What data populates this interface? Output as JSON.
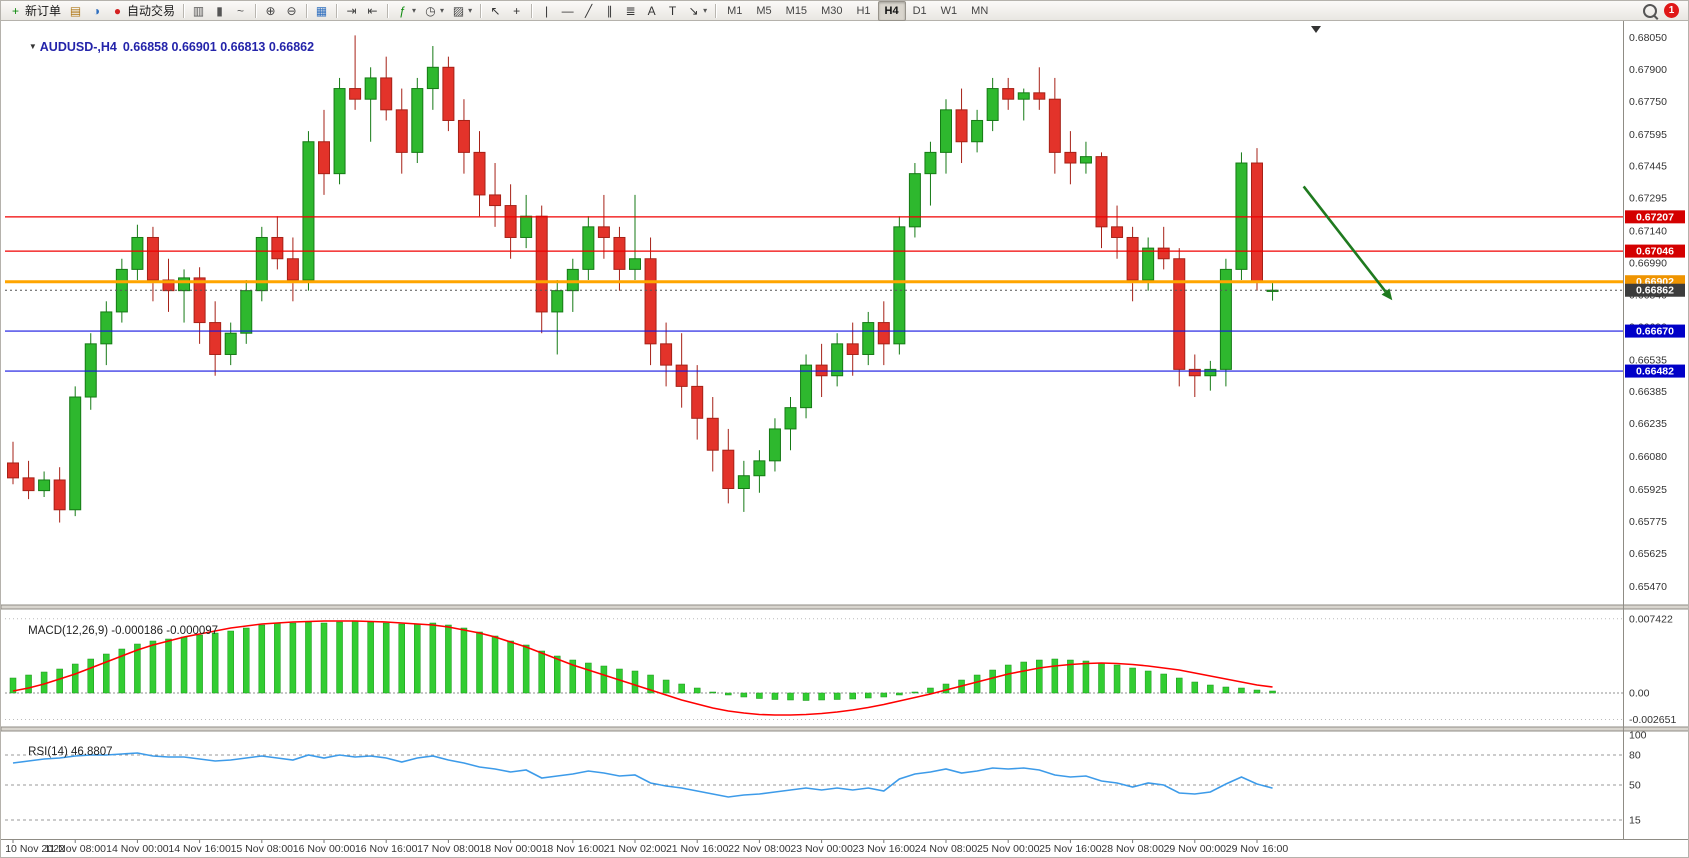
{
  "toolbar": {
    "notification_count": "1",
    "dropdown_glyph": "▾",
    "items": [
      {
        "name": "new-order-button",
        "icon": "new-order-icon",
        "glyph": "+",
        "color": "#0c8a0c",
        "label": "新订单"
      },
      {
        "name": "chart-window-button",
        "icon": "chart-window-icon",
        "glyph": "▤",
        "color": "#b07818"
      },
      {
        "name": "refresh-button",
        "icon": "refresh-icon",
        "glyph": "◑",
        "color": "#2f6fbf"
      },
      {
        "name": "autotrading-button",
        "icon": "autotrading-icon",
        "glyph": "●",
        "color": "#d42020",
        "label": "自动交易"
      },
      {
        "sep": true
      },
      {
        "name": "bar-chart-button",
        "icon": "bar-chart-icon",
        "glyph": "▥",
        "color": "#555555"
      },
      {
        "name": "candlestick-chart-button",
        "icon": "candlestick-chart-icon",
        "glyph": "▮",
        "color": "#555555"
      },
      {
        "name": "line-chart-button",
        "ic on": "line-chart-icon",
        "icon": "line-chart-icon",
        "glyph": "~",
        "color": "#555555"
      },
      {
        "sep": true
      },
      {
        "name": "zoom-in-button",
        "icon": "zoom-in-icon",
        "glyph": "⊕",
        "color": "#444444"
      },
      {
        "name": "zoom-out-button",
        "icon": "zoom-out-icon",
        "glyph": "⊖",
        "color": "#444444"
      },
      {
        "sep": true
      },
      {
        "name": "tile-windows-button",
        "icon": "tile-windows-icon",
        "glyph": "▦",
        "color": "#2f6fbf"
      },
      {
        "sep": true
      },
      {
        "name": "auto-scroll-button",
        "icon": "auto-scroll-icon",
        "glyph": "⇥",
        "color": "#444444"
      },
      {
        "name": "chart-shift-button",
        "icon": "chart-shift-icon",
        "glyph": "⇤",
        "color": "#444444"
      },
      {
        "sep": true
      },
      {
        "name": "indicators-button",
        "icon": "indicators-icon",
        "glyph": "ƒ",
        "color": "#0c8a0c",
        "dropdown": true
      },
      {
        "name": "timeframes-menu-button",
        "icon": "clock-icon",
        "glyph": "◷",
        "color": "#444444",
        "dropdown": true
      },
      {
        "name": "templates-button",
        "icon": "template-icon",
        "glyph": "▨",
        "color": "#444444",
        "dropdown": true
      },
      {
        "sep": true
      },
      {
        "name": "cursor-button",
        "icon": "cursor-icon",
        "glyph": "↖",
        "color": "#333333"
      },
      {
        "name": "crosshair-button",
        "icon": "crosshair-icon",
        "glyph": "+",
        "color": "#333333"
      },
      {
        "sep": true
      },
      {
        "name": "vertical-line-button",
        "icon": "vertical-line-icon",
        "glyph": "|",
        "color": "#333333"
      },
      {
        "name": "horizontal-line-button",
        "icon": "horizontal-line-icon",
        "glyph": "—",
        "color": "#333333"
      },
      {
        "name": "trendline-button",
        "icon": "trendline-icon",
        "glyph": "╱",
        "color": "#333333"
      },
      {
        "name": "channel-button",
        "icon": "channel-icon",
        "glyph": "∥",
        "color": "#333333"
      },
      {
        "name": "fibonacci-button",
        "icon": "fibonacci-icon",
        "glyph": "≣",
        "color": "#333333"
      },
      {
        "name": "text-button",
        "icon": "text-icon",
        "glyph": "A",
        "color": "#333333"
      },
      {
        "name": "label-button",
        "icon": "text-label-icon",
        "glyph": "T",
        "color": "#333333"
      },
      {
        "name": "arrow-tools-button",
        "icon": "arrow-tools-icon",
        "glyph": "↘",
        "color": "#333333",
        "dropdown": true
      },
      {
        "sep": true
      },
      {
        "name": "timeframe-m1-button",
        "text": "M1"
      },
      {
        "name": "timeframe-m5-button",
        "text": "M5"
      },
      {
        "name": "timeframe-m15-button",
        "text": "M15"
      },
      {
        "name": "timeframe-m30-button",
        "text": "M30"
      },
      {
        "name": "timeframe-h1-button",
        "text": "H1"
      },
      {
        "name": "timeframe-h4-button",
        "text": "H4",
        "active": true
      },
      {
        "name": "timeframe-d1-button",
        "text": "D1"
      },
      {
        "name": "timeframe-w1-button",
        "text": "W1"
      },
      {
        "name": "timeframe-mn-button",
        "text": "MN"
      }
    ]
  },
  "chart": {
    "menu_marker": "▼",
    "symbol": "AUDUSD-,H4",
    "open": "0.66858",
    "high": "0.66901",
    "low": "0.66813",
    "close": "0.66862",
    "macd_label": "MACD(12,26,9)",
    "macd_values": "-0.000186 -0.000097",
    "rsi_label": "RSI(14)",
    "rsi_value": "46.8807"
  },
  "chart_data": {
    "type": "candlestick",
    "title": "AUDUSD-,H4",
    "timeframe": "H4",
    "ohlc_current": {
      "open": 0.66858,
      "high": 0.66901,
      "low": 0.66813,
      "close": 0.66862
    },
    "x_labels": [
      "10 Nov 2022",
      "11 Nov 08:00",
      "14 Nov 00:00",
      "14 Nov 16:00",
      "15 Nov 08:00",
      "16 Nov 00:00",
      "16 Nov 16:00",
      "17 Nov 08:00",
      "18 Nov 00:00",
      "18 Nov 16:00",
      "21 Nov 02:00",
      "21 Nov 16:00",
      "22 Nov 08:00",
      "23 Nov 00:00",
      "23 Nov 16:00",
      "24 Nov 08:00",
      "25 Nov 00:00",
      "25 Nov 16:00",
      "28 Nov 08:00",
      "29 Nov 00:00",
      "29 Nov 16:00"
    ],
    "price_axis_labels": [
      "0.68050",
      "0.67900",
      "0.67750",
      "0.67595",
      "0.67445",
      "0.67295",
      "0.67140",
      "0.66990",
      "0.66840",
      "0.66690",
      "0.66535",
      "0.66385",
      "0.66235",
      "0.66080",
      "0.65925",
      "0.65775",
      "0.65625",
      "0.65470"
    ],
    "candles": [
      [
        0.6605,
        0.6615,
        0.6595,
        0.6598
      ],
      [
        0.6598,
        0.6606,
        0.6588,
        0.6592
      ],
      [
        0.6592,
        0.6601,
        0.6589,
        0.6597
      ],
      [
        0.6597,
        0.6603,
        0.6577,
        0.6583
      ],
      [
        0.6583,
        0.6641,
        0.658,
        0.6636
      ],
      [
        0.6636,
        0.6666,
        0.663,
        0.6661
      ],
      [
        0.6661,
        0.6681,
        0.6651,
        0.6676
      ],
      [
        0.6676,
        0.6701,
        0.6671,
        0.6696
      ],
      [
        0.6696,
        0.6717,
        0.6691,
        0.6711
      ],
      [
        0.6711,
        0.6716,
        0.6681,
        0.6691
      ],
      [
        0.6691,
        0.6701,
        0.6676,
        0.6686
      ],
      [
        0.6686,
        0.6696,
        0.6671,
        0.6692
      ],
      [
        0.6692,
        0.6697,
        0.6661,
        0.6671
      ],
      [
        0.6671,
        0.6681,
        0.6646,
        0.6656
      ],
      [
        0.6656,
        0.6671,
        0.6651,
        0.6666
      ],
      [
        0.6666,
        0.6691,
        0.6661,
        0.6686
      ],
      [
        0.6686,
        0.6716,
        0.6681,
        0.6711
      ],
      [
        0.6711,
        0.6721,
        0.6696,
        0.6701
      ],
      [
        0.6701,
        0.6711,
        0.6681,
        0.6691
      ],
      [
        0.6691,
        0.6761,
        0.6686,
        0.6756
      ],
      [
        0.6756,
        0.6771,
        0.6731,
        0.6741
      ],
      [
        0.6741,
        0.6786,
        0.6736,
        0.6781
      ],
      [
        0.6781,
        0.6806,
        0.6771,
        0.6776
      ],
      [
        0.6776,
        0.6791,
        0.6756,
        0.6786
      ],
      [
        0.6786,
        0.6796,
        0.6766,
        0.6771
      ],
      [
        0.6771,
        0.6781,
        0.6741,
        0.6751
      ],
      [
        0.6751,
        0.6786,
        0.6746,
        0.6781
      ],
      [
        0.6781,
        0.6801,
        0.6771,
        0.6791
      ],
      [
        0.6791,
        0.6796,
        0.6761,
        0.6766
      ],
      [
        0.6766,
        0.6776,
        0.6741,
        0.6751
      ],
      [
        0.6751,
        0.6761,
        0.6721,
        0.6731
      ],
      [
        0.6731,
        0.6746,
        0.6716,
        0.6726
      ],
      [
        0.6726,
        0.6736,
        0.6701,
        0.6711
      ],
      [
        0.6711,
        0.6731,
        0.6706,
        0.6721
      ],
      [
        0.6721,
        0.6726,
        0.6666,
        0.6676
      ],
      [
        0.6676,
        0.6691,
        0.6656,
        0.6686
      ],
      [
        0.6686,
        0.6701,
        0.6676,
        0.6696
      ],
      [
        0.6696,
        0.6721,
        0.6691,
        0.6716
      ],
      [
        0.6716,
        0.6731,
        0.6701,
        0.6711
      ],
      [
        0.6711,
        0.6716,
        0.6686,
        0.6696
      ],
      [
        0.6696,
        0.6731,
        0.6691,
        0.6701
      ],
      [
        0.6701,
        0.6711,
        0.6651,
        0.6661
      ],
      [
        0.6661,
        0.6671,
        0.6641,
        0.6651
      ],
      [
        0.6651,
        0.6666,
        0.6631,
        0.6641
      ],
      [
        0.6641,
        0.6651,
        0.6616,
        0.6626
      ],
      [
        0.6626,
        0.6636,
        0.6601,
        0.6611
      ],
      [
        0.6611,
        0.6621,
        0.6586,
        0.6593
      ],
      [
        0.6593,
        0.6606,
        0.6582,
        0.6599
      ],
      [
        0.6599,
        0.6611,
        0.6591,
        0.6606
      ],
      [
        0.6606,
        0.6626,
        0.6601,
        0.6621
      ],
      [
        0.6621,
        0.6636,
        0.6611,
        0.6631
      ],
      [
        0.6631,
        0.6656,
        0.6626,
        0.6651
      ],
      [
        0.6651,
        0.6661,
        0.6636,
        0.6646
      ],
      [
        0.6646,
        0.6666,
        0.6641,
        0.6661
      ],
      [
        0.6661,
        0.6671,
        0.6646,
        0.6656
      ],
      [
        0.6656,
        0.6676,
        0.6651,
        0.6671
      ],
      [
        0.6671,
        0.6681,
        0.6651,
        0.6661
      ],
      [
        0.6661,
        0.6721,
        0.6656,
        0.6716
      ],
      [
        0.6716,
        0.6746,
        0.6711,
        0.6741
      ],
      [
        0.6741,
        0.6756,
        0.6726,
        0.6751
      ],
      [
        0.6751,
        0.6776,
        0.6741,
        0.6771
      ],
      [
        0.6771,
        0.6781,
        0.6746,
        0.6756
      ],
      [
        0.6756,
        0.6771,
        0.6751,
        0.6766
      ],
      [
        0.6766,
        0.6786,
        0.6761,
        0.6781
      ],
      [
        0.6781,
        0.6786,
        0.6771,
        0.6776
      ],
      [
        0.6776,
        0.6781,
        0.6766,
        0.6779
      ],
      [
        0.6779,
        0.6791,
        0.6771,
        0.6776
      ],
      [
        0.6776,
        0.6786,
        0.6741,
        0.6751
      ],
      [
        0.6751,
        0.6761,
        0.6736,
        0.6746
      ],
      [
        0.6746,
        0.6756,
        0.6741,
        0.6749
      ],
      [
        0.6749,
        0.6751,
        0.6706,
        0.6716
      ],
      [
        0.6716,
        0.6726,
        0.6701,
        0.6711
      ],
      [
        0.6711,
        0.6716,
        0.6681,
        0.6691
      ],
      [
        0.6691,
        0.6711,
        0.6686,
        0.6706
      ],
      [
        0.6706,
        0.6716,
        0.6696,
        0.6701
      ],
      [
        0.6701,
        0.6706,
        0.6641,
        0.6649
      ],
      [
        0.6649,
        0.6656,
        0.6636,
        0.6646
      ],
      [
        0.6646,
        0.6653,
        0.6639,
        0.6649
      ],
      [
        0.6649,
        0.6701,
        0.6641,
        0.6696
      ],
      [
        0.6696,
        0.6751,
        0.6691,
        0.6746
      ],
      [
        0.6746,
        0.6753,
        0.6686,
        0.669
      ],
      [
        0.66858,
        0.66901,
        0.66813,
        0.66862
      ]
    ],
    "horizontal_lines": [
      {
        "price": 0.67207,
        "color": "#F00000",
        "width": 1.2,
        "badge": "#D40000"
      },
      {
        "price": 0.67046,
        "color": "#F00000",
        "width": 1.2,
        "badge": "#D40000"
      },
      {
        "price": 0.66902,
        "color": "#FFA500",
        "width": 3,
        "badge": "#EF9400"
      },
      {
        "price": 0.66862,
        "color": "#555555",
        "width": 1,
        "style": "dotted",
        "badge": "#3C3C3C",
        "current": true
      },
      {
        "price": 0.6667,
        "color": "#1414E0",
        "width": 1.2,
        "badge": "#0000C8"
      },
      {
        "price": 0.66482,
        "color": "#1414E0",
        "width": 1.2,
        "badge": "#0000C8"
      }
    ],
    "macd": {
      "name": "MACD(12,26,9)",
      "values_shown": [
        -0.000186,
        -9.7e-05
      ],
      "axis_labels": [
        "0.007422",
        "0.00",
        "-0.002651"
      ],
      "axis_values": [
        0.007422,
        0,
        -0.002651
      ],
      "hist": [
        0.0015,
        0.0018,
        0.0021,
        0.0024,
        0.0029,
        0.0034,
        0.0039,
        0.0044,
        0.0049,
        0.0052,
        0.0054,
        0.0056,
        0.0058,
        0.006,
        0.0062,
        0.0065,
        0.0068,
        0.007,
        0.007,
        0.0071,
        0.007,
        0.0071,
        0.0072,
        0.0071,
        0.007,
        0.0069,
        0.0069,
        0.007,
        0.0068,
        0.0065,
        0.0061,
        0.0057,
        0.0052,
        0.0048,
        0.0042,
        0.0037,
        0.0033,
        0.003,
        0.0027,
        0.0024,
        0.0022,
        0.0018,
        0.0013,
        0.0009,
        0.0005,
        0.0001,
        -0.0002,
        -0.0004,
        -0.00055,
        -0.00065,
        -0.0007,
        -0.00075,
        -0.0007,
        -0.00065,
        -0.0006,
        -0.0005,
        -0.0004,
        -0.0002,
        0.0001,
        0.0005,
        0.0009,
        0.0013,
        0.0018,
        0.0023,
        0.0028,
        0.0031,
        0.0033,
        0.0034,
        0.0033,
        0.0032,
        0.003,
        0.0028,
        0.0025,
        0.0022,
        0.0019,
        0.0015,
        0.0011,
        0.0008,
        0.0006,
        0.0005,
        0.0003,
        0.0002
      ],
      "signal": [
        0.0002,
        0.0005,
        0.0009,
        0.0014,
        0.0019,
        0.0025,
        0.0031,
        0.0037,
        0.0043,
        0.0048,
        0.0052,
        0.0056,
        0.0059,
        0.0062,
        0.0065,
        0.0067,
        0.0069,
        0.007,
        0.0071,
        0.00715,
        0.0072,
        0.0072,
        0.0072,
        0.00715,
        0.0071,
        0.007,
        0.0069,
        0.0068,
        0.0066,
        0.0063,
        0.006,
        0.0056,
        0.0051,
        0.0046,
        0.004,
        0.0034,
        0.0028,
        0.0023,
        0.0018,
        0.0013,
        0.0008,
        0.0003,
        -0.0002,
        -0.0007,
        -0.0011,
        -0.0015,
        -0.0018,
        -0.002,
        -0.00215,
        -0.0022,
        -0.0022,
        -0.00215,
        -0.00205,
        -0.0019,
        -0.0017,
        -0.00145,
        -0.00115,
        -0.0008,
        -0.00045,
        -0.0001,
        0.0003,
        0.0007,
        0.0011,
        0.0015,
        0.0019,
        0.0022,
        0.0025,
        0.0027,
        0.00285,
        0.00295,
        0.003,
        0.00295,
        0.00285,
        0.0027,
        0.0025,
        0.0023,
        0.002,
        0.0017,
        0.0014,
        0.0011,
        0.0008,
        0.0006
      ]
    },
    "rsi": {
      "name": "RSI(14)",
      "value_shown": 46.8807,
      "axis_labels": [
        "100",
        "80",
        "50",
        "15"
      ],
      "axis_values": [
        100,
        80,
        50,
        15
      ],
      "levels": [
        80,
        50,
        15
      ],
      "values": [
        72,
        74,
        76,
        77,
        79,
        80,
        80,
        81,
        82,
        79,
        78,
        78,
        76,
        74,
        75,
        77,
        79,
        77,
        75,
        80,
        77,
        80,
        78,
        79,
        77,
        73,
        77,
        79,
        75,
        72,
        68,
        66,
        63,
        65,
        57,
        59,
        61,
        64,
        62,
        59,
        60,
        52,
        49,
        47,
        44,
        41,
        38,
        40,
        41,
        43,
        45,
        47,
        45,
        47,
        45,
        47,
        44,
        56,
        61,
        63,
        66,
        62,
        64,
        67,
        66,
        67,
        65,
        60,
        58,
        59,
        54,
        52,
        48,
        52,
        50,
        42,
        41,
        43,
        51,
        58,
        51,
        46.88
      ]
    },
    "annotation_arrow": {
      "from_index": 83,
      "from_price": 0.6735,
      "to_index": 88.7,
      "to_price": 0.66815,
      "color": "#1F7A1F"
    },
    "colors": {
      "up": "#2EB82E",
      "up_border": "#157A15",
      "down": "#E3332A",
      "down_border": "#A62117",
      "macd_hist": "#32CD32",
      "macd_signal": "#FF0000",
      "rsi_line": "#3D9BE9"
    }
  }
}
